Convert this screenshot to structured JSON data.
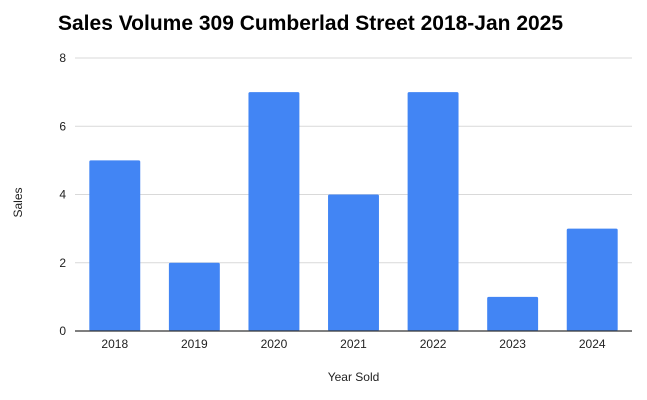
{
  "chart_data": {
    "type": "bar",
    "title": "Sales Volume 309 Cumberlad Street 2018-Jan 2025",
    "xlabel": "Year Sold",
    "ylabel": "Sales",
    "categories": [
      "2018",
      "2019",
      "2020",
      "2021",
      "2022",
      "2023",
      "2024"
    ],
    "values": [
      5,
      2,
      7,
      4,
      7,
      1,
      3
    ],
    "ylim": [
      0,
      8
    ],
    "yticks": [
      0,
      2,
      4,
      6,
      8
    ],
    "grid": true,
    "legend": "none",
    "bar_color": "#4285f4",
    "grid_color": "#d9d9d9",
    "axis_color": "#333333"
  }
}
